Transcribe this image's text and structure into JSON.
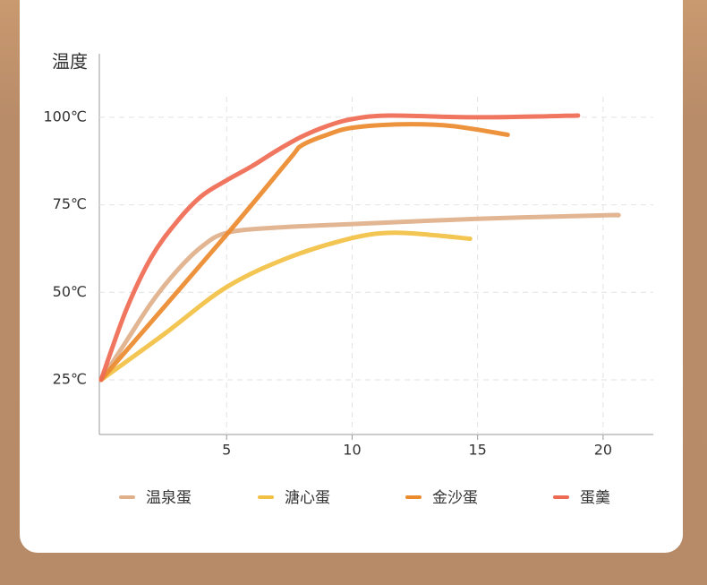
{
  "chart_data": {
    "type": "line",
    "ylabel": "温度",
    "xlim": [
      0,
      22
    ],
    "xticks": [
      5,
      10,
      15,
      20
    ],
    "ylim": [
      10,
      118
    ],
    "yticks": [
      {
        "value": 25,
        "label": "25℃"
      },
      {
        "value": 50,
        "label": "50℃"
      },
      {
        "value": 75,
        "label": "75℃"
      },
      {
        "value": 100,
        "label": "100℃"
      }
    ],
    "grid": true,
    "legend": "bottom",
    "series": [
      {
        "name": "温泉蛋",
        "color": "#dfb08a",
        "x": [
          0,
          1,
          2,
          3,
          4,
          5,
          7,
          10,
          15,
          20,
          20.6
        ],
        "values": [
          25,
          36,
          47,
          56,
          63,
          67,
          68.5,
          69.5,
          71,
          72,
          72
        ]
      },
      {
        "name": "溏心蛋",
        "color": "#f2c043",
        "x": [
          0,
          2.5,
          5,
          7.5,
          10,
          11.5,
          13,
          14.7
        ],
        "values": [
          25,
          38,
          51.5,
          60,
          65.5,
          67,
          66.5,
          65.3
        ]
      },
      {
        "name": "金沙蛋",
        "color": "#ec8a2e",
        "x": [
          0,
          5,
          7.5,
          8,
          9,
          10,
          12,
          14,
          16.2
        ],
        "values": [
          25,
          66.5,
          88,
          92,
          95,
          97,
          98,
          97.5,
          95
        ]
      },
      {
        "name": "蛋羹",
        "color": "#ef6a52",
        "x": [
          0,
          1,
          2,
          3,
          4,
          5,
          6,
          7,
          8,
          9,
          10,
          11.5,
          15,
          19
        ],
        "values": [
          25,
          45,
          60,
          70,
          77.5,
          82,
          86,
          90.5,
          94.5,
          97.5,
          99.5,
          100.5,
          100,
          100.5
        ]
      }
    ]
  }
}
